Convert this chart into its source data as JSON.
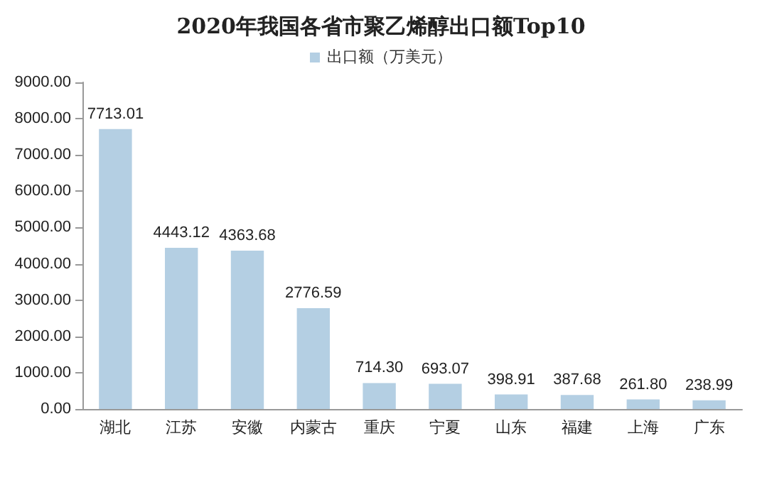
{
  "chart_data": {
    "type": "bar",
    "title": "2020年我国各省市聚乙烯醇出口额Top10",
    "categories": [
      "湖北",
      "江苏",
      "安徽",
      "内蒙古",
      "重庆",
      "宁夏",
      "山东",
      "福建",
      "上海",
      "广东"
    ],
    "series": [
      {
        "name": "出口额（万美元）",
        "color": "#b4cfe3",
        "values": [
          7713.01,
          4443.12,
          4363.68,
          2776.59,
          714.3,
          693.07,
          398.91,
          387.68,
          261.8,
          238.99
        ],
        "value_labels": [
          "7713.01",
          "4443.12",
          "4363.68",
          "2776.59",
          "714.30",
          "693.07",
          "398.91",
          "387.68",
          "261.80",
          "238.99"
        ]
      }
    ],
    "ylim": [
      0,
      9000
    ],
    "yticks": [
      {
        "value": 0,
        "label": "0.00"
      },
      {
        "value": 1000,
        "label": "1000.00"
      },
      {
        "value": 2000,
        "label": "2000.00"
      },
      {
        "value": 3000,
        "label": "3000.00"
      },
      {
        "value": 4000,
        "label": "4000.00"
      },
      {
        "value": 5000,
        "label": "5000.00"
      },
      {
        "value": 6000,
        "label": "6000.00"
      },
      {
        "value": 7000,
        "label": "7000.00"
      },
      {
        "value": 8000,
        "label": "8000.00"
      },
      {
        "value": 9000,
        "label": "9000.00"
      }
    ],
    "legend": "top",
    "grid": false
  }
}
